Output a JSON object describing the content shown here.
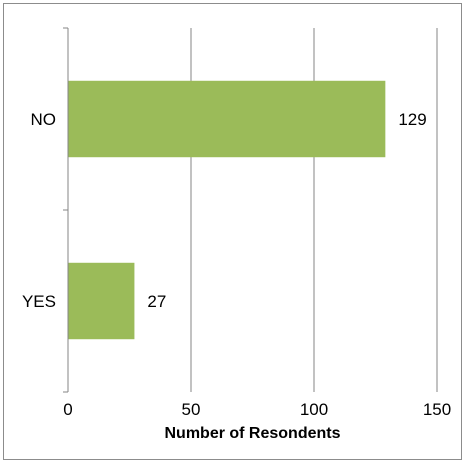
{
  "chart_data": {
    "type": "bar",
    "orientation": "horizontal",
    "categories": [
      "NO",
      "YES"
    ],
    "values": [
      129,
      27
    ],
    "xlabel": "Number of Resondents",
    "xlim": [
      0,
      150
    ],
    "xticks": [
      0,
      50,
      100,
      150
    ],
    "grid": "vertical",
    "legend": "none",
    "bar_color": "#9bbb59"
  }
}
